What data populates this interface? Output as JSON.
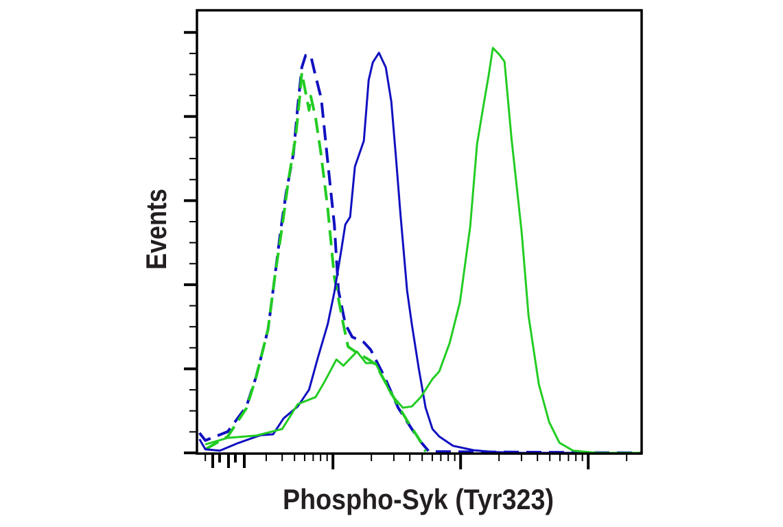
{
  "chart_data": {
    "type": "line",
    "title": "",
    "xlabel": "Phospho-Syk (Tyr323)",
    "ylabel": "Events",
    "x_scale": "log",
    "xlim": [
      86,
      262000
    ],
    "ylim": [
      0,
      100
    ],
    "grid": false,
    "legend": "none",
    "tick_labels_shown": false,
    "series": [
      {
        "color": "#1010c0",
        "dash": "dashed",
        "x": [
          90,
          100,
          150,
          210,
          250,
          310,
          350,
          390,
          430,
          490,
          530,
          570,
          610,
          670,
          720,
          810,
          910,
          1025,
          1104,
          1250,
          1415,
          1746,
          1977,
          2530,
          3241,
          4150,
          4876,
          5659,
          262000
        ],
        "y": [
          4.5,
          2.8,
          4.8,
          10.5,
          17.2,
          27.9,
          39.7,
          50.4,
          58.8,
          67.6,
          78.3,
          87.1,
          89.8,
          89.8,
          85.9,
          80.0,
          65.7,
          51.6,
          36.7,
          29.1,
          26.2,
          25.0,
          23.3,
          17.2,
          10.2,
          5.4,
          2.5,
          0.3,
          0
        ]
      },
      {
        "color": "#22cc22",
        "dash": "dashed",
        "x": [
          100,
          150,
          210,
          250,
          310,
          350,
          400,
          450,
          510,
          550,
          570,
          650,
          670,
          730,
          800,
          910,
          1025,
          1205,
          1313,
          1542,
          1905,
          2155,
          2626,
          3241,
          3808,
          4876,
          5321
        ],
        "y": [
          0.8,
          3.7,
          10.1,
          17.1,
          27.9,
          39.7,
          51.2,
          62.0,
          71.3,
          80.6,
          85.9,
          77.4,
          80.6,
          75.8,
          68.2,
          55.2,
          39.7,
          29.1,
          24.0,
          22.6,
          21.1,
          20.0,
          15.5,
          10.7,
          7.3,
          2.5,
          0.3
        ]
      },
      {
        "color": "#1010c0",
        "dash": "solid",
        "x": [
          90,
          100,
          130,
          180,
          270,
          340,
          410,
          530,
          650,
          760,
          910,
          1025,
          1161,
          1250,
          1363,
          1486,
          1746,
          1905,
          2051,
          2293,
          2594,
          2864,
          3124,
          3363,
          3808,
          4150,
          4698,
          5321,
          6020,
          6808,
          8728,
          12650,
          18340,
          30070,
          262000
        ],
        "y": [
          3.1,
          0.8,
          0.5,
          2.2,
          4.0,
          4.2,
          7.8,
          10.5,
          14.3,
          21.4,
          29.1,
          36.3,
          45.7,
          51.6,
          53.3,
          64.7,
          70.5,
          84.2,
          88.2,
          90.4,
          87.1,
          79.4,
          66.4,
          54.6,
          36.7,
          29.1,
          19.1,
          10.2,
          5.4,
          3.7,
          1.6,
          0.6,
          0.2,
          0,
          0
        ]
      },
      {
        "color": "#22cc22",
        "dash": "solid",
        "x": [
          100,
          150,
          250,
          400,
          530,
          730,
          860,
          1064,
          1205,
          1542,
          1812,
          2155,
          2439,
          2864,
          3532,
          4150,
          4876,
          6020,
          6808,
          8204,
          9886,
          11890,
          13460,
          15240,
          16600,
          17900,
          20240,
          22090,
          25000,
          30070,
          34060,
          41020,
          49400,
          59430,
          76200,
          117500,
          262000
        ],
        "y": [
          1.9,
          3.4,
          3.9,
          5.4,
          11.0,
          12.6,
          16.1,
          21.1,
          19.7,
          22.9,
          20.3,
          20.3,
          17.2,
          13.2,
          10.2,
          10.5,
          12.6,
          16.7,
          18.4,
          24.8,
          34.1,
          51.2,
          69.8,
          79.1,
          85.3,
          91.5,
          89.9,
          88.4,
          71.3,
          50.0,
          31.0,
          15.5,
          7.0,
          2.3,
          0.5,
          0,
          0
        ]
      }
    ]
  }
}
